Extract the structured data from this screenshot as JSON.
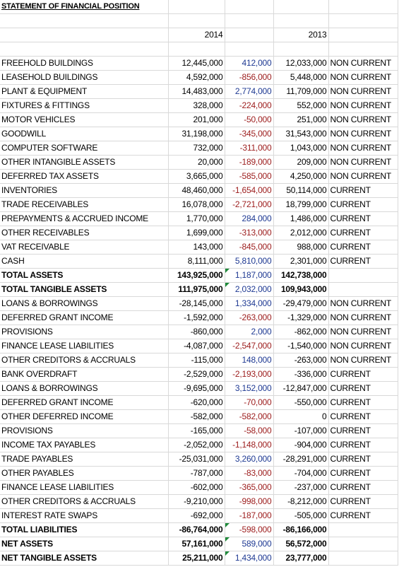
{
  "sheet": {
    "title": "STATEMENT OF FINANCIAL POSITION",
    "year_current": "2014",
    "year_prior": "2013",
    "colors": {
      "positive_diff": "#1f3a93",
      "negative_diff": "#9c1c1c",
      "error_flag": "#1e8a3a"
    },
    "rows": [
      {
        "label": "FREEHOLD BUILDINGS",
        "v2014": "12,445,000",
        "diff": "412,000",
        "v2013": "12,033,000",
        "class": "NON CURRENT",
        "bold": false
      },
      {
        "label": "LEASEHOLD BUILDINGS",
        "v2014": "4,592,000",
        "diff": "-856,000",
        "v2013": "5,448,000",
        "class": "NON CURRENT",
        "bold": false
      },
      {
        "label": "PLANT & EQUIPMENT",
        "v2014": "14,483,000",
        "diff": "2,774,000",
        "v2013": "11,709,000",
        "class": "NON CURRENT",
        "bold": false
      },
      {
        "label": "FIXTURES & FITTINGS",
        "v2014": "328,000",
        "diff": "-224,000",
        "v2013": "552,000",
        "class": "NON CURRENT",
        "bold": false
      },
      {
        "label": "MOTOR VEHICLES",
        "v2014": "201,000",
        "diff": "-50,000",
        "v2013": "251,000",
        "class": "NON CURRENT",
        "bold": false
      },
      {
        "label": "GOODWILL",
        "v2014": "31,198,000",
        "diff": "-345,000",
        "v2013": "31,543,000",
        "class": "NON CURRENT",
        "bold": false
      },
      {
        "label": "COMPUTER SOFTWARE",
        "v2014": "732,000",
        "diff": "-311,000",
        "v2013": "1,043,000",
        "class": "NON CURRENT",
        "bold": false
      },
      {
        "label": "OTHER INTANGIBLE ASSETS",
        "v2014": "20,000",
        "diff": "-189,000",
        "v2013": "209,000",
        "class": "NON CURRENT",
        "bold": false
      },
      {
        "label": "DEFERRED TAX ASSETS",
        "v2014": "3,665,000",
        "diff": "-585,000",
        "v2013": "4,250,000",
        "class": "NON CURRENT",
        "bold": false
      },
      {
        "label": "INVENTORIES",
        "v2014": "48,460,000",
        "diff": "-1,654,000",
        "v2013": "50,114,000",
        "class": "CURRENT",
        "bold": false
      },
      {
        "label": "TRADE RECEIVABLES",
        "v2014": "16,078,000",
        "diff": "-2,721,000",
        "v2013": "18,799,000",
        "class": "CURRENT",
        "bold": false
      },
      {
        "label": "PREPAYMENTS & ACCRUED INCOME",
        "v2014": "1,770,000",
        "diff": "284,000",
        "v2013": "1,486,000",
        "class": "CURRENT",
        "bold": false
      },
      {
        "label": "OTHER RECEIVABLES",
        "v2014": "1,699,000",
        "diff": "-313,000",
        "v2013": "2,012,000",
        "class": "CURRENT",
        "bold": false
      },
      {
        "label": "VAT RECEIVABLE",
        "v2014": "143,000",
        "diff": "-845,000",
        "v2013": "988,000",
        "class": "CURRENT",
        "bold": false
      },
      {
        "label": "CASH",
        "v2014": "8,111,000",
        "diff": "5,810,000",
        "v2013": "2,301,000",
        "class": "CURRENT",
        "bold": false
      },
      {
        "label": "TOTAL ASSETS",
        "v2014": "143,925,000",
        "diff": "1,187,000",
        "v2013": "142,738,000",
        "class": "",
        "bold": true,
        "flag": true
      },
      {
        "label": "TOTAL TANGIBLE ASSETS",
        "v2014": "111,975,000",
        "diff": "2,032,000",
        "v2013": "109,943,000",
        "class": "",
        "bold": true,
        "flag": true
      },
      {
        "label": "LOANS & BORROWINGS",
        "v2014": "-28,145,000",
        "diff": "1,334,000",
        "v2013": "-29,479,000",
        "class": "NON CURRENT",
        "bold": false
      },
      {
        "label": "DEFERRED GRANT INCOME",
        "v2014": "-1,592,000",
        "diff": "-263,000",
        "v2013": "-1,329,000",
        "class": "NON CURRENT",
        "bold": false
      },
      {
        "label": "PROVISIONS",
        "v2014": "-860,000",
        "diff": "2,000",
        "v2013": "-862,000",
        "class": "NON CURRENT",
        "bold": false
      },
      {
        "label": "FINANCE LEASE LIABILITIES",
        "v2014": "-4,087,000",
        "diff": "-2,547,000",
        "v2013": "-1,540,000",
        "class": "NON CURRENT",
        "bold": false
      },
      {
        "label": "OTHER CREDITORS & ACCRUALS",
        "v2014": "-115,000",
        "diff": "148,000",
        "v2013": "-263,000",
        "class": "NON CURRENT",
        "bold": false
      },
      {
        "label": "BANK OVERDRAFT",
        "v2014": "-2,529,000",
        "diff": "-2,193,000",
        "v2013": "-336,000",
        "class": "CURRENT",
        "bold": false
      },
      {
        "label": "LOANS & BORROWINGS",
        "v2014": "-9,695,000",
        "diff": "3,152,000",
        "v2013": "-12,847,000",
        "class": "CURRENT",
        "bold": false
      },
      {
        "label": "DEFERRED GRANT INCOME",
        "v2014": "-620,000",
        "diff": "-70,000",
        "v2013": "-550,000",
        "class": "CURRENT",
        "bold": false
      },
      {
        "label": "OTHER DEFERRED INCOME",
        "v2014": "-582,000",
        "diff": "-582,000",
        "v2013": "0",
        "class": "CURRENT",
        "bold": false
      },
      {
        "label": "PROVISIONS",
        "v2014": "-165,000",
        "diff": "-58,000",
        "v2013": "-107,000",
        "class": "CURRENT",
        "bold": false
      },
      {
        "label": "INCOME TAX PAYABLES",
        "v2014": "-2,052,000",
        "diff": "-1,148,000",
        "v2013": "-904,000",
        "class": "CURRENT",
        "bold": false
      },
      {
        "label": "TRADE PAYABLES",
        "v2014": "-25,031,000",
        "diff": "3,260,000",
        "v2013": "-28,291,000",
        "class": "CURRENT",
        "bold": false
      },
      {
        "label": "OTHER PAYABLES",
        "v2014": "-787,000",
        "diff": "-83,000",
        "v2013": "-704,000",
        "class": "CURRENT",
        "bold": false
      },
      {
        "label": "FINANCE LEASE LIABILITIES",
        "v2014": "-602,000",
        "diff": "-365,000",
        "v2013": "-237,000",
        "class": "CURRENT",
        "bold": false
      },
      {
        "label": "OTHER CREDITORS & ACCRUALS",
        "v2014": "-9,210,000",
        "diff": "-998,000",
        "v2013": "-8,212,000",
        "class": "CURRENT",
        "bold": false
      },
      {
        "label": "INTEREST RATE SWAPS",
        "v2014": "-692,000",
        "diff": "-187,000",
        "v2013": "-505,000",
        "class": "CURRENT",
        "bold": false
      },
      {
        "label": "TOTAL LIABILITIES",
        "v2014": "-86,764,000",
        "diff": "-598,000",
        "v2013": "-86,166,000",
        "class": "",
        "bold": true,
        "flag": true
      },
      {
        "label": "NET ASSETS",
        "v2014": "57,161,000",
        "diff": "589,000",
        "v2013": "56,572,000",
        "class": "",
        "bold": true,
        "flag": true
      },
      {
        "label": "NET TANGIBLE ASSETS",
        "v2014": "25,211,000",
        "diff": "1,434,000",
        "v2013": "23,777,000",
        "class": "",
        "bold": true,
        "flag": true
      }
    ]
  }
}
